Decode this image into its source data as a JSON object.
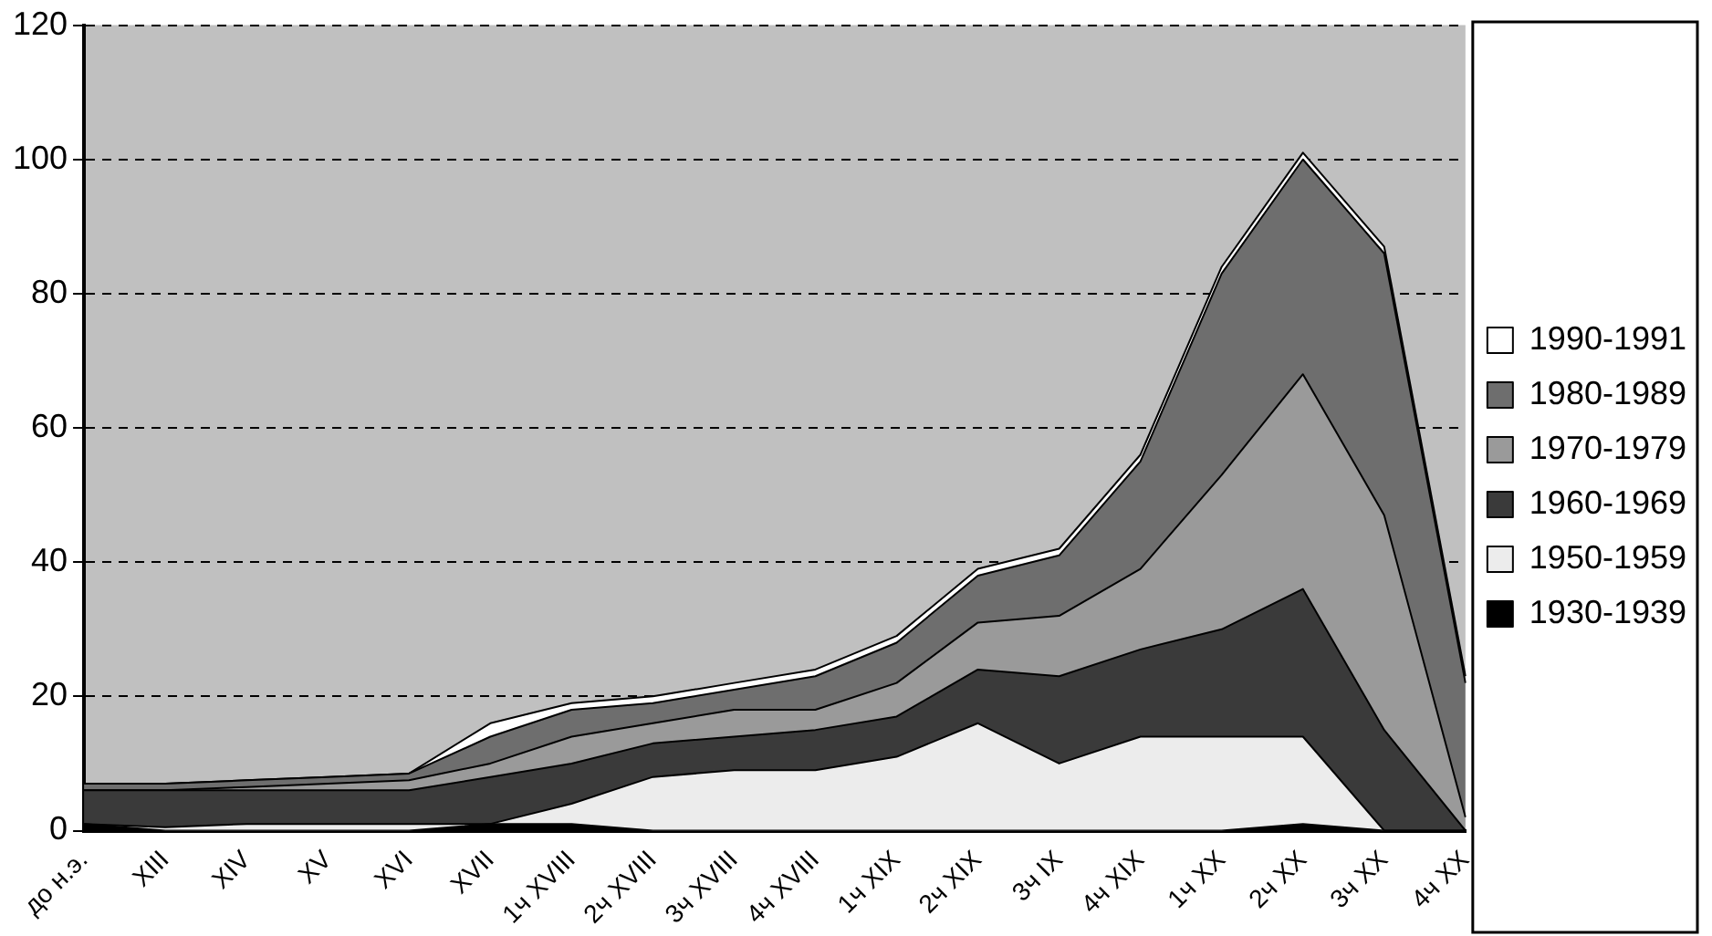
{
  "chart_data": {
    "type": "area",
    "stacked": true,
    "categories": [
      "до н.э.",
      "XIII",
      "XIV",
      "XV",
      "XVI",
      "XVII",
      "1ч XVIII",
      "2ч XVIII",
      "3ч XVIII",
      "4ч XVIII",
      "1ч XIX",
      "2ч XIX",
      "3ч IX",
      "4ч XIX",
      "1ч XX",
      "2ч XX",
      "3ч XX",
      "4ч XX"
    ],
    "series": [
      {
        "name": "1930-1939",
        "color": "#000000",
        "values": [
          1,
          0,
          0,
          0,
          0,
          1,
          1,
          0,
          0,
          0,
          0,
          0,
          0,
          0,
          0,
          1,
          0,
          0
        ]
      },
      {
        "name": "1950-1959",
        "color": "#ececec",
        "values": [
          0,
          0.5,
          1,
          1,
          1,
          0,
          3,
          8,
          9,
          9,
          11,
          16,
          10,
          14,
          14,
          13,
          0,
          0
        ]
      },
      {
        "name": "1960-1969",
        "color": "#3a3a3a",
        "values": [
          5,
          5.5,
          5,
          5,
          5,
          7,
          6,
          5,
          5,
          6,
          6,
          8,
          13,
          13,
          16,
          22,
          15,
          0
        ]
      },
      {
        "name": "1970-1979",
        "color": "#9a9a9a",
        "values": [
          0,
          0,
          0.5,
          1,
          1.5,
          2,
          4,
          3,
          4,
          3,
          5,
          7,
          9,
          12,
          23,
          32,
          32,
          2
        ]
      },
      {
        "name": "1980-1989",
        "color": "#6e6e6e",
        "values": [
          1,
          1,
          1,
          1,
          1,
          4,
          4,
          3,
          3,
          5,
          6,
          7,
          9,
          16,
          30,
          32,
          39,
          20
        ]
      },
      {
        "name": "1990-1991",
        "color": "#ffffff",
        "values": [
          0,
          0,
          0,
          0,
          0,
          2,
          1,
          1,
          1,
          1,
          1,
          1,
          1,
          1,
          1,
          1,
          1,
          1
        ]
      }
    ],
    "ylim": [
      0,
      120
    ],
    "yticks": [
      0,
      20,
      40,
      60,
      80,
      100,
      120
    ],
    "grid": "y",
    "legend": "right"
  }
}
